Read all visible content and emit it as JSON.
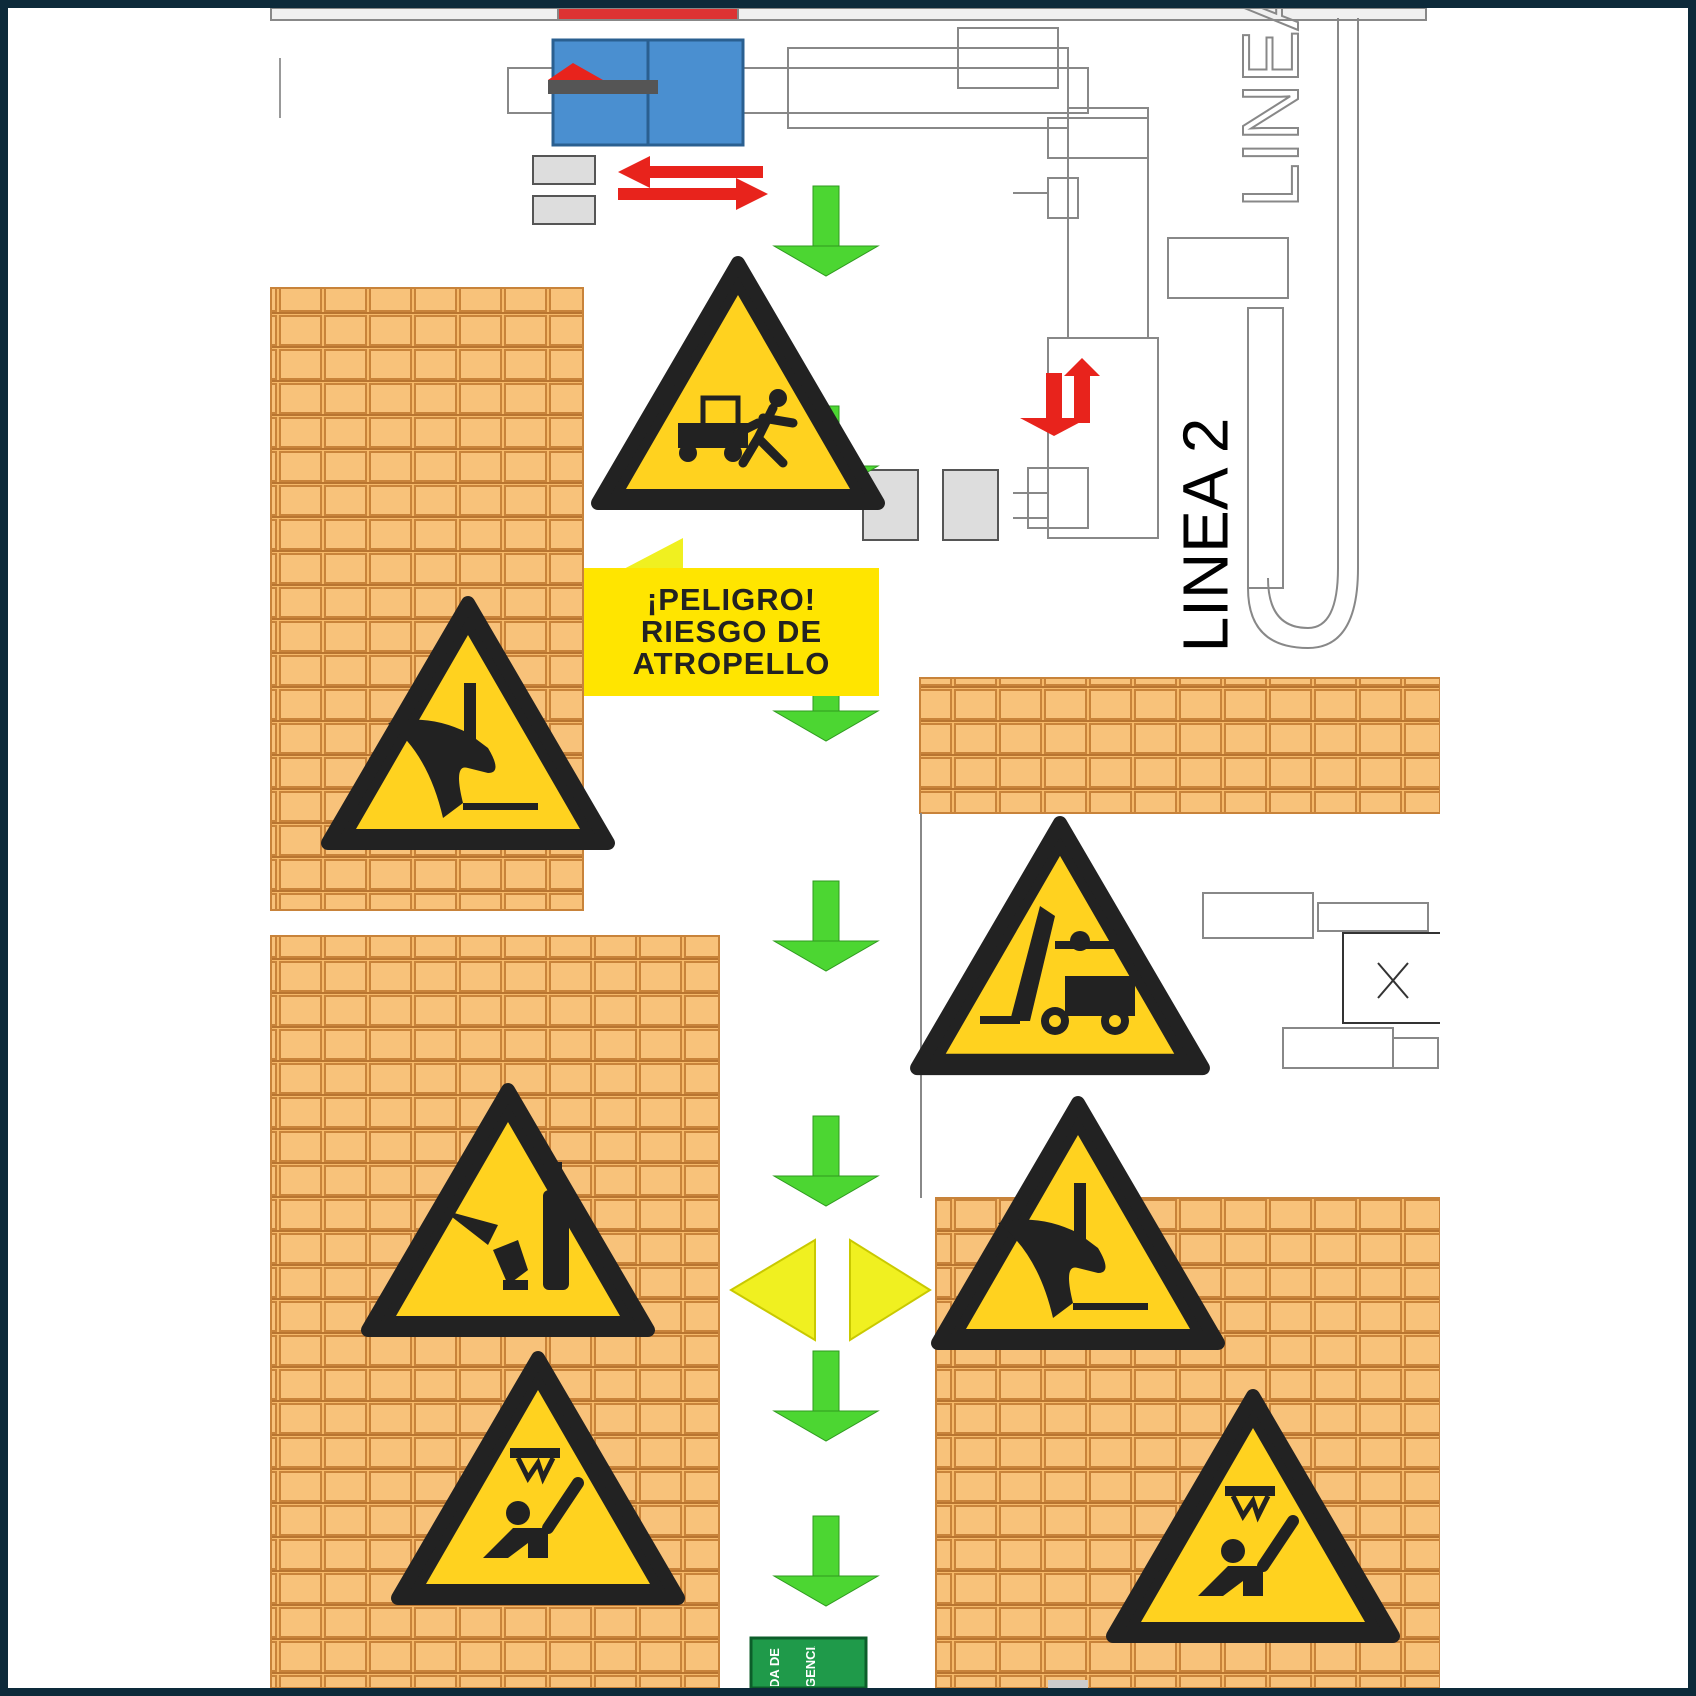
{
  "floor_plan": {
    "line_label_rotated": "LINEA 2",
    "line_label_drawing": "LINEA 2"
  },
  "warning_panel": {
    "lines": [
      "¡PELIGRO!",
      "RIESGO DE",
      "ATROPELLO"
    ]
  },
  "exit_sign": {
    "text_fragments": [
      "DA DE",
      "GENCIA"
    ]
  },
  "colors": {
    "frame_border": "#0d2a3a",
    "pallet_fill": "#f5b868",
    "pallet_grid": "#c8833a",
    "warning_yellow": "#ffd21f",
    "arrow_green": "#4cd632",
    "arrow_red": "#e8231c",
    "machine_blue": "#4a8fd0",
    "exit_green": "#1f9a4a"
  },
  "signs": [
    {
      "name": "vehicle-run-over-warning-icon"
    },
    {
      "name": "hand-crush-warning-icon"
    },
    {
      "name": "forklift-warning-icon"
    },
    {
      "name": "broken-glass-warning-icon"
    },
    {
      "name": "hand-crush-warning-icon"
    },
    {
      "name": "falling-object-warning-icon"
    },
    {
      "name": "falling-object-warning-icon"
    }
  ]
}
